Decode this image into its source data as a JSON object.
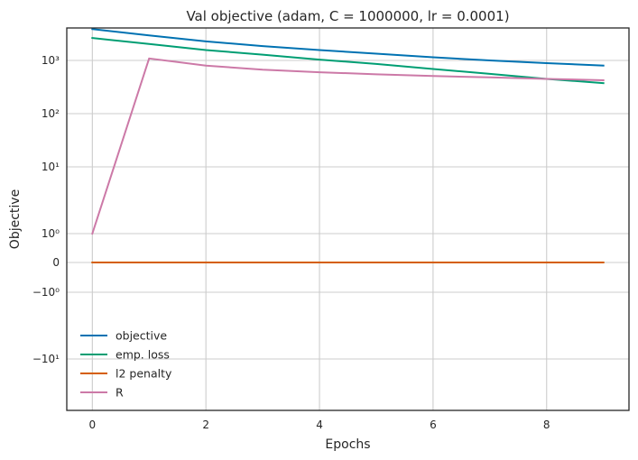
{
  "chart_data": {
    "type": "line",
    "title": "Val objective (adam, C = 1000000, lr = 0.0001)",
    "xlabel": "Epochs",
    "ylabel": "Objective",
    "y_scale": "symlog",
    "grid": true,
    "legend_position": "lower-left",
    "xlim": [
      -0.45,
      9.45
    ],
    "x_ticks": [
      0,
      2,
      4,
      6,
      8
    ],
    "y_ticks": [
      {
        "value": -10,
        "label": "−10¹"
      },
      {
        "value": -1,
        "label": "−10⁰"
      },
      {
        "value": 0,
        "label": "0"
      },
      {
        "value": 1,
        "label": "10⁰"
      },
      {
        "value": 10,
        "label": "10¹"
      },
      {
        "value": 100,
        "label": "10²"
      },
      {
        "value": 1000,
        "label": "10³"
      }
    ],
    "x": [
      0,
      1,
      2,
      3,
      4,
      5,
      6,
      7,
      8,
      9
    ],
    "series": [
      {
        "name": "objective",
        "color": "#0072b2",
        "values": [
          3400,
          2650,
          2100,
          1750,
          1500,
          1300,
          1130,
          1000,
          890,
          800
        ]
      },
      {
        "name": "emp. loss",
        "color": "#009e73",
        "values": [
          2400,
          1900,
          1500,
          1250,
          1030,
          860,
          690,
          560,
          450,
          375
        ]
      },
      {
        "name": "l2 penalty",
        "color": "#d55e00",
        "values": [
          0,
          0,
          0,
          0,
          0,
          0,
          0,
          0,
          0,
          0
        ]
      },
      {
        "name": "R",
        "color": "#cc79a7",
        "values": [
          1,
          1080,
          800,
          670,
          600,
          550,
          510,
          480,
          450,
          425
        ]
      }
    ]
  }
}
